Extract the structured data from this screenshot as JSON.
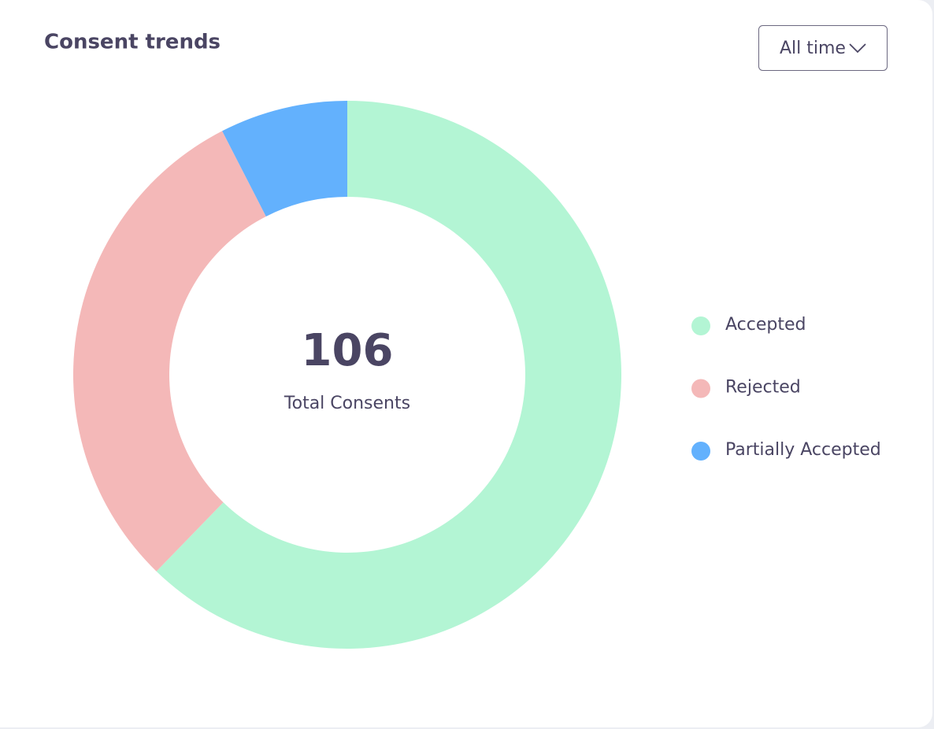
{
  "chart_data": {
    "type": "donut",
    "title": "Consent trends",
    "filter": "All time",
    "center_value": 106,
    "center_label": "Total Consents",
    "categories": [
      "Accepted",
      "Rejected",
      "Partially Accepted"
    ],
    "values": [
      66,
      32,
      8
    ],
    "colors": [
      "#b3f5d4",
      "#f4b8b8",
      "#63b1fd"
    ],
    "legend": "right"
  }
}
